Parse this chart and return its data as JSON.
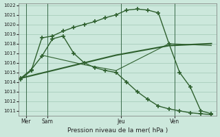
{
  "bg_color": "#cce8dc",
  "grid_color": "#a0c8b4",
  "line_color": "#2d5f2d",
  "title": "Pression niveau de la mer( hPa )",
  "ylim": [
    1010.5,
    1022.2
  ],
  "ytick_min": 1011,
  "ytick_max": 1022,
  "xlim": [
    -0.2,
    18.5
  ],
  "xtick_positions": [
    0.5,
    2.5,
    9.5,
    14.5
  ],
  "xtick_labels": [
    "Mer",
    "Sam",
    "Jeu",
    "Ven"
  ],
  "vline_positions": [
    0.5,
    2.5,
    9.5,
    14.5
  ],
  "series1": {
    "x": [
      0,
      1,
      2,
      3,
      4,
      5,
      6,
      7,
      8,
      9,
      10,
      11,
      12,
      13,
      14,
      15,
      16,
      17,
      18
    ],
    "y": [
      1014.3,
      1015.2,
      1018.6,
      1018.8,
      1019.3,
      1019.7,
      1020.0,
      1020.3,
      1020.7,
      1021.0,
      1021.5,
      1021.6,
      1021.5,
      1021.2,
      1018.0,
      1015.0,
      1013.5,
      1011.0,
      1010.7
    ]
  },
  "series2": {
    "x": [
      0,
      1,
      2,
      3,
      4,
      5,
      6,
      7,
      8,
      9,
      10,
      11,
      12,
      13,
      14,
      15,
      16,
      17,
      18
    ],
    "y": [
      1014.4,
      1015.3,
      1016.7,
      1018.5,
      1018.8,
      1017.0,
      1016.0,
      1015.5,
      1015.2,
      1015.0,
      1014.0,
      1013.0,
      1012.2,
      1011.5,
      1011.2,
      1011.0,
      1010.8,
      1010.7,
      1010.6
    ]
  },
  "series3": {
    "x": [
      0,
      9,
      14,
      18
    ],
    "y": [
      1014.4,
      1016.8,
      1017.8,
      1018.0
    ]
  },
  "series4": {
    "x": [
      2,
      6,
      9,
      14,
      18
    ],
    "y": [
      1016.8,
      1015.8,
      1015.2,
      1018.0,
      1017.8
    ]
  }
}
